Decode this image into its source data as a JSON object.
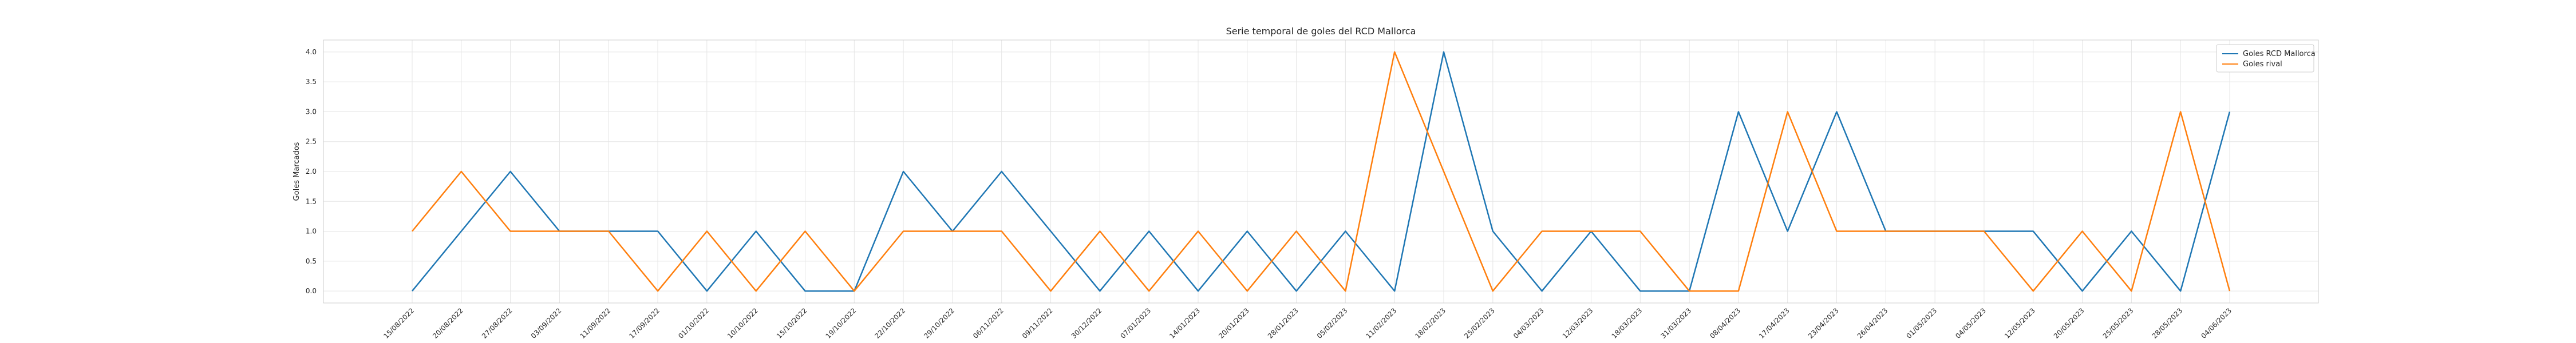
{
  "chart_data": {
    "type": "line",
    "title": "Serie temporal de goles del RCD Mallorca",
    "xlabel": "",
    "ylabel": "Goles Marcados",
    "ylim": [
      -0.2,
      4.2
    ],
    "yticks": [
      "0.0",
      "0.5",
      "1.0",
      "1.5",
      "2.0",
      "2.5",
      "3.0",
      "3.5",
      "4.0"
    ],
    "grid": true,
    "legend_position": "top-right",
    "x": [
      "15/08/2022",
      "20/08/2022",
      "27/08/2022",
      "03/09/2022",
      "11/09/2022",
      "17/09/2022",
      "01/10/2022",
      "10/10/2022",
      "15/10/2022",
      "19/10/2022",
      "22/10/2022",
      "29/10/2022",
      "06/11/2022",
      "09/11/2022",
      "30/12/2022",
      "07/01/2023",
      "14/01/2023",
      "20/01/2023",
      "28/01/2023",
      "05/02/2023",
      "11/02/2023",
      "18/02/2023",
      "25/02/2023",
      "04/03/2023",
      "12/03/2023",
      "18/03/2023",
      "31/03/2023",
      "08/04/2023",
      "17/04/2023",
      "23/04/2023",
      "26/04/2023",
      "01/05/2023",
      "04/05/2023",
      "12/05/2023",
      "20/05/2023",
      "25/05/2023",
      "28/05/2023",
      "04/06/2023"
    ],
    "series": [
      {
        "name": "Goles RCD Mallorca",
        "color": "#1f77b4",
        "values": [
          0,
          1,
          2,
          1,
          1,
          1,
          0,
          1,
          0,
          0,
          2,
          1,
          2,
          1,
          0,
          1,
          0,
          1,
          0,
          1,
          0,
          4,
          1,
          0,
          1,
          0,
          0,
          3,
          1,
          3,
          1,
          1,
          1,
          1,
          0,
          1,
          0,
          3
        ]
      },
      {
        "name": "Goles rival",
        "color": "#ff7f0e",
        "values": [
          1,
          2,
          1,
          1,
          1,
          0,
          1,
          0,
          1,
          0,
          1,
          1,
          1,
          0,
          1,
          0,
          1,
          0,
          1,
          0,
          4,
          2,
          0,
          1,
          1,
          1,
          0,
          0,
          3,
          1,
          1,
          1,
          1,
          0,
          1,
          0,
          3,
          0
        ]
      }
    ]
  }
}
